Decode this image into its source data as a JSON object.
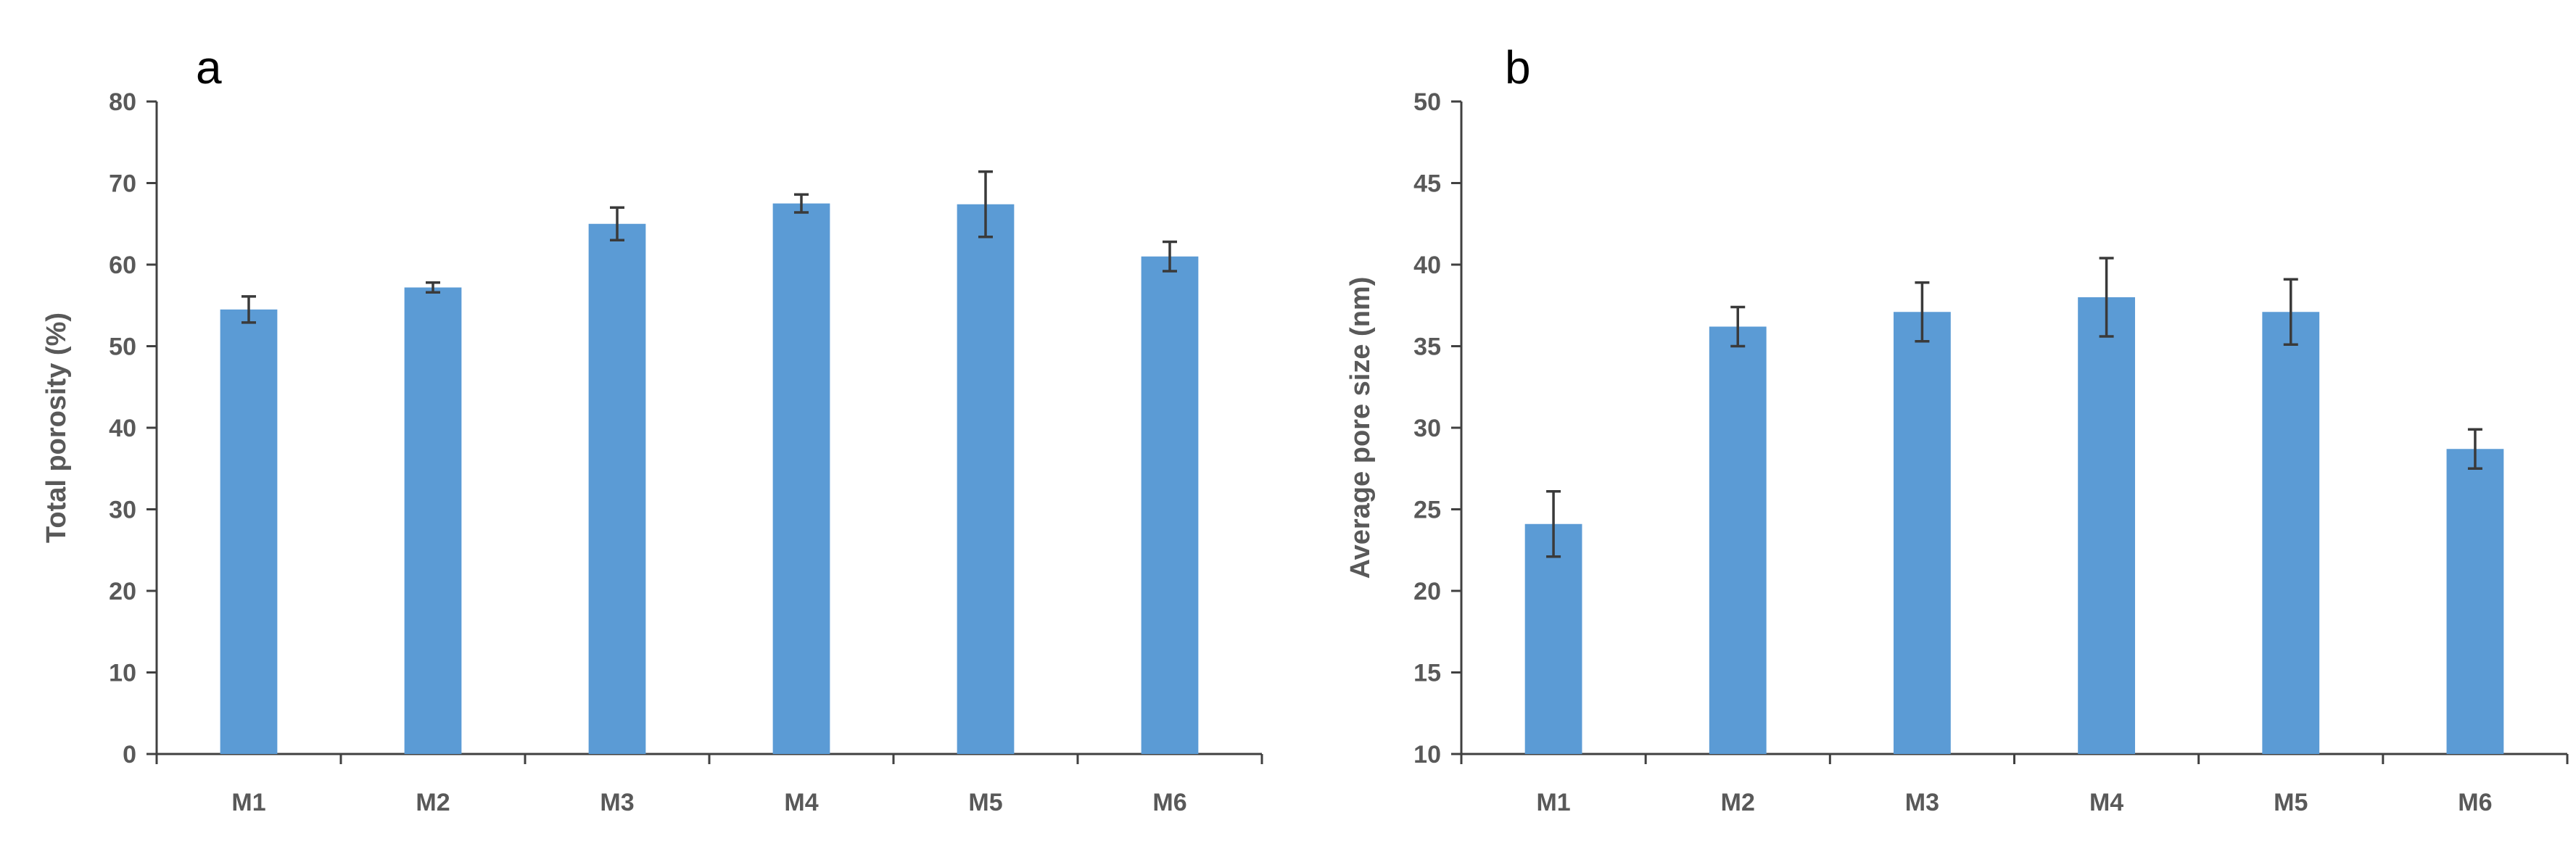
{
  "colors": {
    "bar": "#5b9bd5",
    "axis": "#404040",
    "text": "#595959"
  },
  "chart_data": [
    {
      "type": "bar",
      "panel_label": "a",
      "categories": [
        "M1",
        "M2",
        "M3",
        "M4",
        "M5",
        "M6"
      ],
      "values": [
        54.5,
        57.2,
        65.0,
        67.5,
        67.4,
        61.0
      ],
      "errors": [
        1.6,
        0.6,
        2.0,
        1.1,
        4.0,
        1.8
      ],
      "title": "",
      "xlabel": "",
      "ylabel": "Total porosity (%)",
      "ylim": [
        0,
        80
      ],
      "yticks": [
        "0",
        "10",
        "20",
        "30",
        "40",
        "50",
        "60",
        "70",
        "80"
      ],
      "grid": false,
      "legend": "none"
    },
    {
      "type": "bar",
      "panel_label": "b",
      "categories": [
        "M1",
        "M2",
        "M3",
        "M4",
        "M5",
        "M6"
      ],
      "values": [
        24.1,
        36.2,
        37.1,
        38.0,
        37.1,
        28.7
      ],
      "errors": [
        2.0,
        1.2,
        1.8,
        2.4,
        2.0,
        1.2
      ],
      "title": "",
      "xlabel": "",
      "ylabel": "Average pore size (nm)",
      "ylim": [
        10,
        50
      ],
      "yticks": [
        "10",
        "15",
        "20",
        "25",
        "30",
        "35",
        "40",
        "45",
        "50"
      ],
      "grid": false,
      "legend": "none"
    }
  ]
}
